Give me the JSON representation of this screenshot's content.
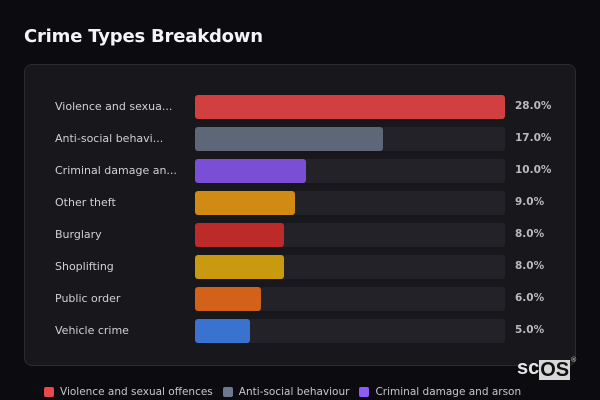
{
  "header": {
    "title": "Crime Types Breakdown"
  },
  "chart_data": {
    "type": "bar",
    "orientation": "horizontal",
    "title": "Crime Types Breakdown",
    "categories": [
      "Violence and sexual offences",
      "Anti-social behaviour",
      "Criminal damage and arson",
      "Other theft",
      "Burglary",
      "Shoplifting",
      "Public order",
      "Vehicle crime"
    ],
    "display_labels": [
      "Violence and sexua...",
      "Anti-social behavi...",
      "Criminal damage an...",
      "Other theft",
      "Burglary",
      "Shoplifting",
      "Public order",
      "Vehicle crime"
    ],
    "values": [
      28.0,
      17.0,
      10.0,
      9.0,
      8.0,
      8.0,
      6.0,
      5.0
    ],
    "value_labels": [
      "28.0%",
      "17.0%",
      "10.0%",
      "9.0%",
      "8.0%",
      "8.0%",
      "6.0%",
      "5.0%"
    ],
    "colors": [
      "#d23f41",
      "#5d6778",
      "#7a4fd6",
      "#d18a14",
      "#bd2a2a",
      "#c99a10",
      "#d2621a",
      "#3a72d0"
    ],
    "xlim": [
      0,
      28
    ],
    "unit": "%",
    "legend_position": "bottom"
  },
  "legend": [
    {
      "label": "Violence and sexual offences",
      "color": "#e5484d"
    },
    {
      "label": "Anti-social behaviour",
      "color": "#6b7890"
    },
    {
      "label": "Criminal damage and arson",
      "color": "#8b5cf6"
    }
  ],
  "watermark": {
    "text_a": "sc",
    "text_b": "OS",
    "mark": "®"
  }
}
